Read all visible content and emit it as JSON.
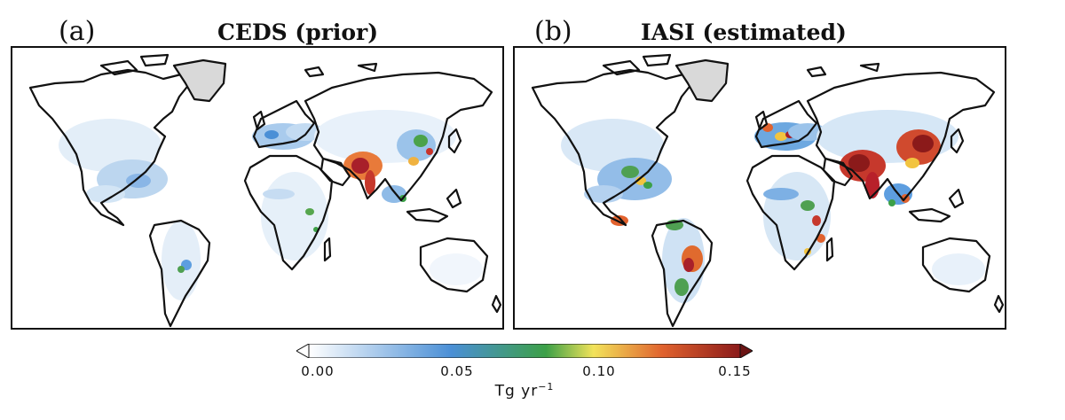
{
  "panels": [
    {
      "letter": "(a)",
      "title": "CEDS (prior)"
    },
    {
      "letter": "(b)",
      "title": "IASI (estimated)"
    }
  ],
  "colorbar": {
    "ticks": [
      "0.00",
      "0.05",
      "0.10",
      "0.15"
    ],
    "units_main": "Tg yr",
    "units_exp": "−1",
    "stops": [
      "#ffffff",
      "#4a8fd6",
      "#3ca047",
      "#f2e35a",
      "#e0622e",
      "#8b1a1a"
    ],
    "extend": "both"
  },
  "colors": {
    "coastline": "#111111",
    "greenland": "#d9d9d9",
    "low": "#cfe4f5",
    "mid": "#5a9be0",
    "high": "#b8202a"
  }
}
